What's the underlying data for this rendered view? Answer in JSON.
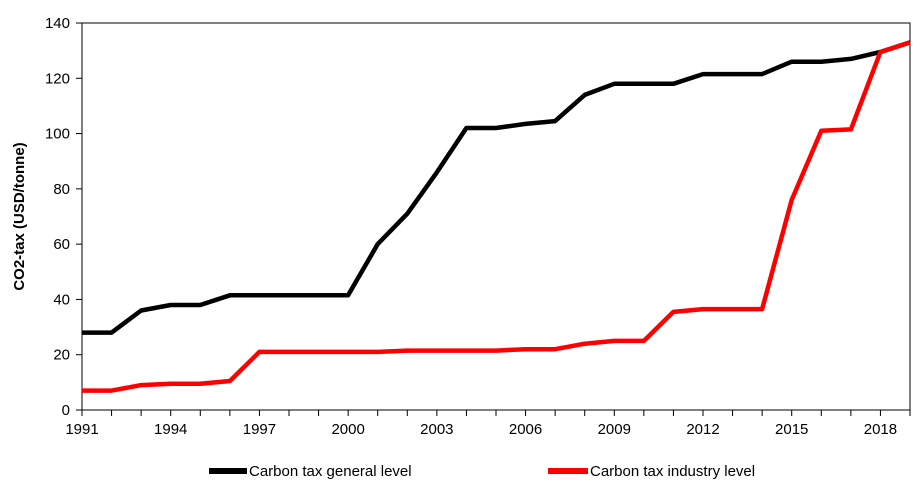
{
  "chart_data": {
    "type": "line",
    "title": "",
    "xlabel": "",
    "ylabel": "CO2-tax (USD/tonne)",
    "ylim": [
      0,
      140
    ],
    "xlim": [
      1991,
      2019
    ],
    "yticks": [
      0,
      20,
      40,
      60,
      80,
      100,
      120,
      140
    ],
    "xticks": [
      1991,
      1994,
      1997,
      2000,
      2003,
      2006,
      2009,
      2012,
      2015,
      2018
    ],
    "grid": false,
    "legend_position": "bottom",
    "series": [
      {
        "name": "Carbon tax general level",
        "color": "#000000",
        "x": [
          1991,
          1992,
          1993,
          1994,
          1995,
          1996,
          1997,
          1998,
          1999,
          2000,
          2001,
          2002,
          2003,
          2004,
          2005,
          2006,
          2007,
          2008,
          2009,
          2010,
          2011,
          2012,
          2013,
          2014,
          2015,
          2016,
          2017,
          2018,
          2019
        ],
        "values": [
          28,
          28,
          36,
          38,
          38,
          41.5,
          41.5,
          41.5,
          41.5,
          41.5,
          60,
          71,
          86,
          102,
          102,
          103.5,
          104.5,
          114,
          118,
          118,
          118,
          121.5,
          121.5,
          121.5,
          126,
          126,
          127,
          129.5,
          133
        ]
      },
      {
        "name": "Carbon tax industry level",
        "color": "#ff0000",
        "x": [
          1991,
          1992,
          1993,
          1994,
          1995,
          1996,
          1997,
          1998,
          1999,
          2000,
          2001,
          2002,
          2003,
          2004,
          2005,
          2006,
          2007,
          2008,
          2009,
          2010,
          2011,
          2012,
          2013,
          2014,
          2015,
          2016,
          2017,
          2018,
          2019
        ],
        "values": [
          7,
          7,
          9,
          9.5,
          9.5,
          10.5,
          21,
          21,
          21,
          21,
          21,
          21.5,
          21.5,
          21.5,
          21.5,
          22,
          22,
          24,
          25,
          25,
          35.5,
          36.5,
          36.5,
          36.5,
          76,
          101,
          101.5,
          129.5,
          133
        ]
      }
    ]
  }
}
